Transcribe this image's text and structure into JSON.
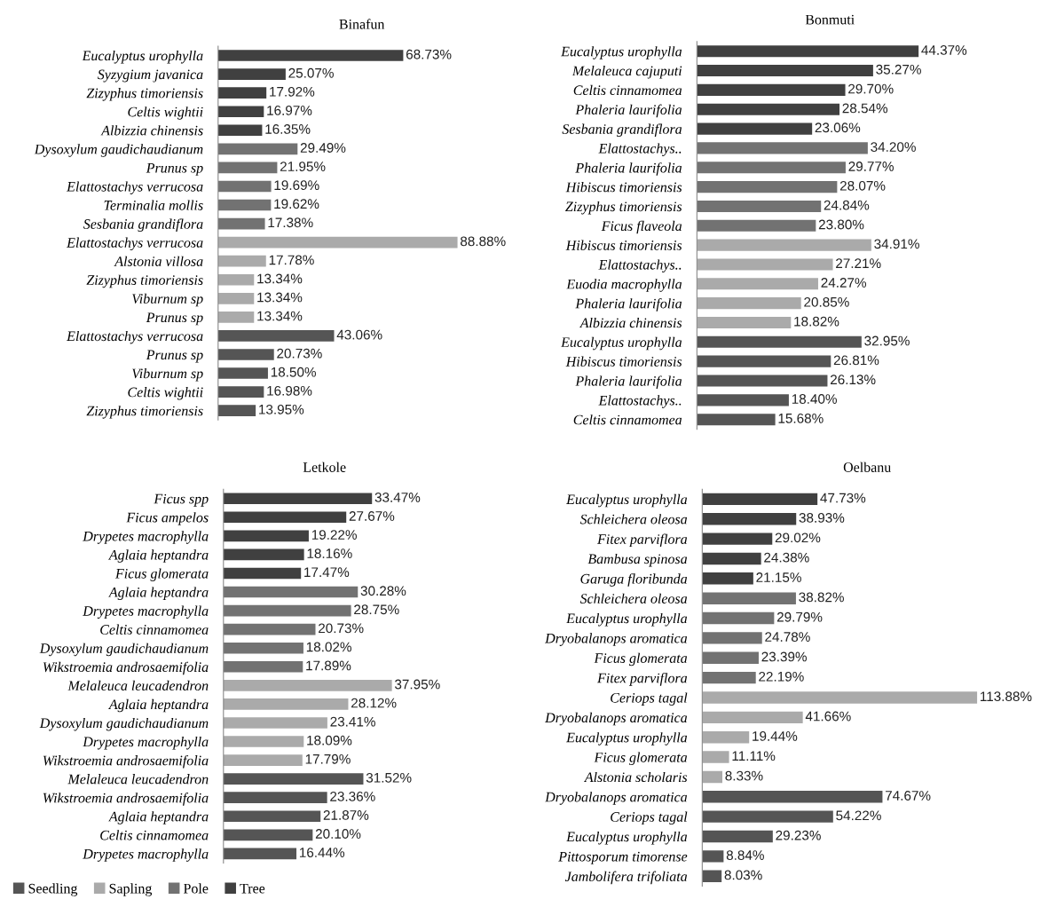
{
  "chart_data": [
    {
      "type": "bar",
      "orientation": "horizontal",
      "title": "Binafun",
      "data_labels": true,
      "legend": false,
      "categories": [
        "Eucalyptus urophylla",
        "Syzygium javanica",
        "Zizyphus timoriensis",
        "Celtis wightii",
        "Albizzia chinensis",
        "Dysoxylum gaudichaudianum",
        "Prunus sp",
        "Elattostachys verrucosa",
        "Terminalia mollis",
        "Sesbania grandiflora",
        "Elattostachys verrucosa",
        "Alstonia villosa",
        "Zizyphus timoriensis",
        "Viburnum sp",
        "Prunus sp",
        "Elattostachys verrucosa",
        "Prunus sp",
        "Viburnum sp",
        "Celtis wightii",
        "Zizyphus timoriensis"
      ],
      "series": [
        {
          "color": "#555555",
          "values": [
            null,
            null,
            null,
            null,
            null,
            null,
            null,
            null,
            null,
            null,
            null,
            null,
            null,
            null,
            null,
            43.06,
            20.73,
            18.5,
            16.98,
            13.95
          ],
          "value_labels": [
            null,
            null,
            null,
            null,
            null,
            null,
            null,
            null,
            null,
            null,
            null,
            null,
            null,
            null,
            null,
            "43.06%",
            "20.73%",
            "18.50%",
            "16.98%",
            "13.95%"
          ]
        },
        {
          "color": "#aaaaaa",
          "values": [
            null,
            null,
            null,
            null,
            null,
            null,
            null,
            null,
            null,
            null,
            88.88,
            17.78,
            13.34,
            13.34,
            13.34,
            null,
            null,
            null,
            null,
            null
          ],
          "value_labels": [
            null,
            null,
            null,
            null,
            null,
            null,
            null,
            null,
            null,
            null,
            "88.88%",
            "17.78%",
            "13.34%",
            "13.34%",
            "13.34%",
            null,
            null,
            null,
            null,
            null
          ]
        },
        {
          "color": "#727272",
          "values": [
            null,
            null,
            null,
            null,
            null,
            29.49,
            21.95,
            19.69,
            19.62,
            17.38,
            null,
            null,
            null,
            null,
            null,
            null,
            null,
            null,
            null,
            null
          ],
          "value_labels": [
            null,
            null,
            null,
            null,
            null,
            "29.49%",
            "21.95%",
            "19.69%",
            "19.62%",
            "17.38%",
            null,
            null,
            null,
            null,
            null,
            null,
            null,
            null,
            null,
            null
          ]
        },
        {
          "color": "#404040",
          "values": [
            68.73,
            25.07,
            17.92,
            16.97,
            16.35,
            null,
            null,
            null,
            null,
            null,
            null,
            null,
            null,
            null,
            null,
            null,
            null,
            null,
            null,
            null
          ],
          "value_labels": [
            "68.73%",
            "25.07%",
            "17.92%",
            "16.97%",
            "16.35%",
            null,
            null,
            null,
            null,
            null,
            null,
            null,
            null,
            null,
            null,
            null,
            null,
            null,
            null,
            null
          ]
        }
      ]
    },
    {
      "type": "bar",
      "orientation": "horizontal",
      "title": "Bonmuti",
      "data_labels": true,
      "legend": false,
      "categories": [
        "Eucalyptus urophylla",
        "Melaleuca cajuputi",
        "Celtis cinnamomea",
        "Phaleria laurifolia",
        "Sesbania grandiflora",
        "Elattostachys..",
        "Phaleria laurifolia",
        "Hibiscus timoriensis",
        "Zizyphus timoriensis",
        "Ficus flaveola",
        "Hibiscus timoriensis",
        "Elattostachys..",
        "Euodia macrophylla",
        "Phaleria laurifolia",
        "Albizzia chinensis",
        "Eucalyptus urophylla",
        "Hibiscus timoriensis",
        "Phaleria laurifolia",
        "Elattostachys..",
        "Celtis cinnamomea"
      ],
      "series": [
        {
          "color": "#555555",
          "values": [
            null,
            null,
            null,
            null,
            null,
            null,
            null,
            null,
            null,
            null,
            null,
            null,
            null,
            null,
            null,
            32.95,
            26.81,
            26.13,
            18.4,
            15.68
          ],
          "value_labels": [
            null,
            null,
            null,
            null,
            null,
            null,
            null,
            null,
            null,
            null,
            null,
            null,
            null,
            null,
            null,
            "32.95%",
            "26.81%",
            "26.13%",
            "18.40%",
            "15.68%"
          ]
        },
        {
          "color": "#aaaaaa",
          "values": [
            null,
            null,
            null,
            null,
            null,
            null,
            null,
            null,
            null,
            null,
            34.91,
            27.21,
            24.27,
            20.85,
            18.82,
            null,
            null,
            null,
            null,
            null
          ],
          "value_labels": [
            null,
            null,
            null,
            null,
            null,
            null,
            null,
            null,
            null,
            null,
            "34.91%",
            "27.21%",
            "24.27%",
            "20.85%",
            "18.82%",
            null,
            null,
            null,
            null,
            null
          ]
        },
        {
          "color": "#727272",
          "values": [
            null,
            null,
            null,
            null,
            null,
            34.2,
            29.77,
            28.07,
            24.84,
            23.8,
            null,
            null,
            null,
            null,
            null,
            null,
            null,
            null,
            null,
            null
          ],
          "value_labels": [
            null,
            null,
            null,
            null,
            null,
            "34.20%",
            "29.77%",
            "28.07%",
            "24.84%",
            "23.80%",
            null,
            null,
            null,
            null,
            null,
            null,
            null,
            null,
            null,
            null
          ]
        },
        {
          "color": "#404040",
          "values": [
            44.37,
            35.27,
            29.7,
            28.54,
            23.06,
            null,
            null,
            null,
            null,
            null,
            null,
            null,
            null,
            null,
            null,
            null,
            null,
            null,
            null,
            null
          ],
          "value_labels": [
            "44.37%",
            "35.27%",
            "29.70%",
            "28.54%",
            "23.06%",
            null,
            null,
            null,
            null,
            null,
            null,
            null,
            null,
            null,
            null,
            null,
            null,
            null,
            null,
            null
          ]
        }
      ]
    },
    {
      "type": "bar",
      "orientation": "horizontal",
      "title": "Letkole",
      "data_labels": true,
      "legend": "bottom left",
      "categories": [
        "Ficus spp",
        "Ficus ampelos",
        "Drypetes macrophylla",
        "Aglaia heptandra",
        "Ficus glomerata",
        "Aglaia heptandra",
        "Drypetes macrophylla",
        "Celtis cinnamomea",
        "Dysoxylum gaudichaudianum",
        "Wikstroemia androsaemifolia",
        "Melaleuca leucadendron",
        "Aglaia heptandra",
        "Dysoxylum gaudichaudianum",
        "Drypetes macrophylla",
        "Wikstroemia androsaemifolia",
        "Melaleuca leucadendron",
        "Wikstroemia androsaemifolia",
        "Aglaia heptandra",
        "Celtis cinnamomea",
        "Drypetes macrophylla"
      ],
      "series": [
        {
          "name": "Seedling",
          "color": "#555555",
          "values": [
            null,
            null,
            null,
            null,
            null,
            null,
            null,
            null,
            null,
            null,
            null,
            null,
            null,
            null,
            null,
            31.52,
            23.36,
            21.87,
            20.1,
            16.44
          ],
          "value_labels": [
            null,
            null,
            null,
            null,
            null,
            null,
            null,
            null,
            null,
            null,
            null,
            null,
            null,
            null,
            null,
            "31.52%",
            "23.36%",
            "21.87%",
            "20.10%",
            "16.44%"
          ]
        },
        {
          "name": "Sapling",
          "color": "#aaaaaa",
          "values": [
            null,
            null,
            null,
            null,
            null,
            null,
            null,
            null,
            null,
            null,
            37.95,
            28.12,
            23.41,
            18.09,
            17.79,
            null,
            null,
            null,
            null,
            null
          ],
          "value_labels": [
            null,
            null,
            null,
            null,
            null,
            null,
            null,
            null,
            null,
            null,
            "37.95%",
            "28.12%",
            "23.41%",
            "18.09%",
            "17.79%",
            null,
            null,
            null,
            null,
            null
          ]
        },
        {
          "name": "Pole",
          "color": "#727272",
          "values": [
            null,
            null,
            null,
            null,
            null,
            30.28,
            28.75,
            20.73,
            18.02,
            17.89,
            null,
            null,
            null,
            null,
            null,
            null,
            null,
            null,
            null,
            null
          ],
          "value_labels": [
            null,
            null,
            null,
            null,
            null,
            "30.28%",
            "28.75%",
            "20.73%",
            "18.02%",
            "17.89%",
            null,
            null,
            null,
            null,
            null,
            null,
            null,
            null,
            null,
            null
          ]
        },
        {
          "name": "Tree",
          "color": "#404040",
          "values": [
            33.47,
            27.67,
            19.22,
            18.16,
            17.47,
            null,
            null,
            null,
            null,
            null,
            null,
            null,
            null,
            null,
            null,
            null,
            null,
            null,
            null,
            null
          ],
          "value_labels": [
            "33.47%",
            "27.67%",
            "19.22%",
            "18.16%",
            "17.47%",
            null,
            null,
            null,
            null,
            null,
            null,
            null,
            null,
            null,
            null,
            null,
            null,
            null,
            null,
            null
          ]
        }
      ]
    },
    {
      "type": "bar",
      "orientation": "horizontal",
      "title": "Oelbanu",
      "data_labels": true,
      "legend": false,
      "categories": [
        "Eucalyptus urophylla",
        "Schleichera oleosa",
        "Fitex parviflora",
        "Bambusa spinosa",
        "Garuga floribunda",
        "Schleichera oleosa",
        "Eucalyptus urophylla",
        "Dryobalanops aromatica",
        "Ficus glomerata",
        "Fitex parviflora",
        "Ceriops tagal",
        "Dryobalanops aromatica",
        "Eucalyptus urophylla",
        "Ficus glomerata",
        "Alstonia scholaris",
        "Dryobalanops aromatica",
        "Ceriops tagal",
        "Eucalyptus urophylla",
        "Pittosporum timorense",
        "Jambolifera trifoliata"
      ],
      "series": [
        {
          "color": "#555555",
          "values": [
            null,
            null,
            null,
            null,
            null,
            null,
            null,
            null,
            null,
            null,
            null,
            null,
            null,
            null,
            null,
            74.67,
            54.22,
            29.23,
            8.84,
            8.03
          ],
          "value_labels": [
            null,
            null,
            null,
            null,
            null,
            null,
            null,
            null,
            null,
            null,
            null,
            null,
            null,
            null,
            null,
            "74.67%",
            "54.22%",
            "29.23%",
            "8.84%",
            "8.03%"
          ]
        },
        {
          "color": "#aaaaaa",
          "values": [
            null,
            null,
            null,
            null,
            null,
            null,
            null,
            null,
            null,
            null,
            113.88,
            41.66,
            19.44,
            11.11,
            8.33,
            null,
            null,
            null,
            null,
            null
          ],
          "value_labels": [
            null,
            null,
            null,
            null,
            null,
            null,
            null,
            null,
            null,
            null,
            "113.88%",
            "41.66%",
            "19.44%",
            "11.11%",
            "8.33%",
            null,
            null,
            null,
            null,
            null
          ]
        },
        {
          "color": "#727272",
          "values": [
            null,
            null,
            null,
            null,
            null,
            38.82,
            29.79,
            24.78,
            23.39,
            22.19,
            null,
            null,
            null,
            null,
            null,
            null,
            null,
            null,
            null,
            null
          ],
          "value_labels": [
            null,
            null,
            null,
            null,
            null,
            "38.82%",
            "29.79%",
            "24.78%",
            "23.39%",
            "22.19%",
            null,
            null,
            null,
            null,
            null,
            null,
            null,
            null,
            null,
            null
          ]
        },
        {
          "color": "#404040",
          "values": [
            47.73,
            38.93,
            29.02,
            24.38,
            21.15,
            null,
            null,
            null,
            null,
            null,
            null,
            null,
            null,
            null,
            null,
            null,
            null,
            null,
            null,
            null
          ],
          "value_labels": [
            "47.73%",
            "38.93%",
            "29.02%",
            "24.38%",
            "21.15%",
            null,
            null,
            null,
            null,
            null,
            null,
            null,
            null,
            null,
            null,
            null,
            null,
            null,
            null,
            null
          ]
        }
      ]
    }
  ]
}
